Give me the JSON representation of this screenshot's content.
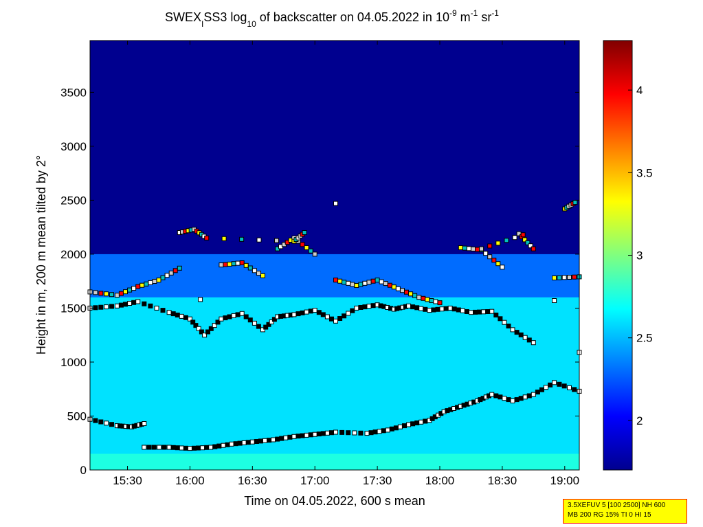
{
  "chart_data": {
    "type": "heatmap",
    "title": {
      "p1": "SWEX",
      "sub1": "I",
      "p2": "SS3 log",
      "sub2": "10",
      "p3": " of backscatter on 04.05.2022 in 10",
      "sup1": "-9",
      "p4": " m",
      "sup2": "-1",
      "p5": " sr",
      "sup3": "-1"
    },
    "xlabel": "Time on 04.05.2022, 600 s mean",
    "ylabel": "Height in m, 200 m mean tilted by 2°",
    "x_ticks": [
      {
        "label": "15:30",
        "minutes": 930
      },
      {
        "label": "16:00",
        "minutes": 960
      },
      {
        "label": "16:30",
        "minutes": 990
      },
      {
        "label": "17:00",
        "minutes": 1020
      },
      {
        "label": "17:30",
        "minutes": 1050
      },
      {
        "label": "18:00",
        "minutes": 1080
      },
      {
        "label": "18:30",
        "minutes": 1110
      },
      {
        "label": "19:00",
        "minutes": 1140
      }
    ],
    "x_range_minutes": [
      912,
      1147
    ],
    "y_ticks": [
      0,
      500,
      1000,
      1500,
      2000,
      2500,
      3000,
      3500
    ],
    "y_range": [
      0,
      3980
    ],
    "colorbar": {
      "range": [
        1.7,
        4.3
      ],
      "ticks": [
        {
          "label": "2",
          "value": 2.0
        },
        {
          "label": "2.5",
          "value": 2.5
        },
        {
          "label": "3",
          "value": 3.0
        },
        {
          "label": "3.5",
          "value": 3.5
        },
        {
          "label": "4",
          "value": 4.0
        }
      ],
      "colormap": "jet"
    },
    "layers": [
      {
        "name": "surface-layer",
        "height_m": 150,
        "level": 2.75
      },
      {
        "name": "boundary-layer",
        "top_height_m": 1600,
        "level": 2.6
      },
      {
        "name": "residual-layer",
        "top_height_m": 2000,
        "level": 2.3
      },
      {
        "name": "free-troposphere",
        "level": 1.75
      }
    ],
    "detections": [
      {
        "name": "lowest-layer",
        "points": [
          [
            912,
            470
          ],
          [
            925,
            410
          ],
          [
            932,
            400
          ],
          [
            938,
            430
          ],
          [
            938,
            210
          ],
          [
            950,
            210
          ],
          [
            960,
            200
          ],
          [
            970,
            210
          ],
          [
            980,
            240
          ],
          [
            990,
            260
          ],
          [
            1000,
            280
          ],
          [
            1010,
            310
          ],
          [
            1020,
            330
          ],
          [
            1030,
            350
          ],
          [
            1045,
            340
          ],
          [
            1055,
            370
          ],
          [
            1065,
            420
          ],
          [
            1075,
            460
          ],
          [
            1082,
            540
          ],
          [
            1090,
            590
          ],
          [
            1098,
            640
          ],
          [
            1105,
            700
          ],
          [
            1115,
            640
          ],
          [
            1125,
            700
          ],
          [
            1135,
            810
          ],
          [
            1147,
            730
          ]
        ]
      },
      {
        "name": "middle-layer",
        "points": [
          [
            912,
            1500
          ],
          [
            925,
            1520
          ],
          [
            935,
            1560
          ],
          [
            950,
            1460
          ],
          [
            960,
            1400
          ],
          [
            967,
            1250
          ],
          [
            975,
            1400
          ],
          [
            985,
            1450
          ],
          [
            995,
            1300
          ],
          [
            1002,
            1420
          ],
          [
            1010,
            1440
          ],
          [
            1020,
            1480
          ],
          [
            1030,
            1380
          ],
          [
            1040,
            1500
          ],
          [
            1050,
            1530
          ],
          [
            1058,
            1490
          ],
          [
            1065,
            1520
          ],
          [
            1075,
            1480
          ],
          [
            1085,
            1500
          ],
          [
            1095,
            1460
          ],
          [
            1105,
            1470
          ],
          [
            1115,
            1300
          ],
          [
            1125,
            1180
          ],
          [
            1135,
            1570
          ],
          [
            1147,
            1090
          ]
        ]
      },
      {
        "name": "upper-layer",
        "points": [
          [
            912,
            1650
          ],
          [
            925,
            1620
          ],
          [
            935,
            1700
          ],
          [
            945,
            1760
          ],
          [
            955,
            1870
          ],
          [
            965,
            1580
          ],
          [
            975,
            1900
          ],
          [
            985,
            1920
          ],
          [
            995,
            1800
          ],
          [
            1002,
            2050
          ],
          [
            1010,
            2150
          ],
          [
            1020,
            2000
          ],
          [
            1030,
            1760
          ],
          [
            1040,
            1710
          ],
          [
            1050,
            1760
          ],
          [
            1060,
            1680
          ],
          [
            1070,
            1600
          ],
          [
            1080,
            1550
          ],
          [
            1090,
            2060
          ],
          [
            1100,
            2040
          ],
          [
            1110,
            1880
          ],
          [
            1118,
            2190
          ],
          [
            1125,
            2050
          ],
          [
            1135,
            1780
          ],
          [
            1147,
            1790
          ]
        ]
      },
      {
        "name": "top-layer",
        "points": [
          [
            955,
            2200
          ],
          [
            962,
            2230
          ],
          [
            968,
            2150
          ],
          [
            1010,
            2120
          ],
          [
            1015,
            2200
          ],
          [
            1030,
            2470
          ],
          [
            1100,
            2050
          ],
          [
            1120,
            2180
          ],
          [
            1140,
            2420
          ],
          [
            1145,
            2480
          ]
        ]
      }
    ]
  },
  "info_box": {
    "line1": "3.5XEFUV 5 [100 2500] NH 600",
    "line2": "MB 200 RG 15% TI 0 HI 15"
  }
}
